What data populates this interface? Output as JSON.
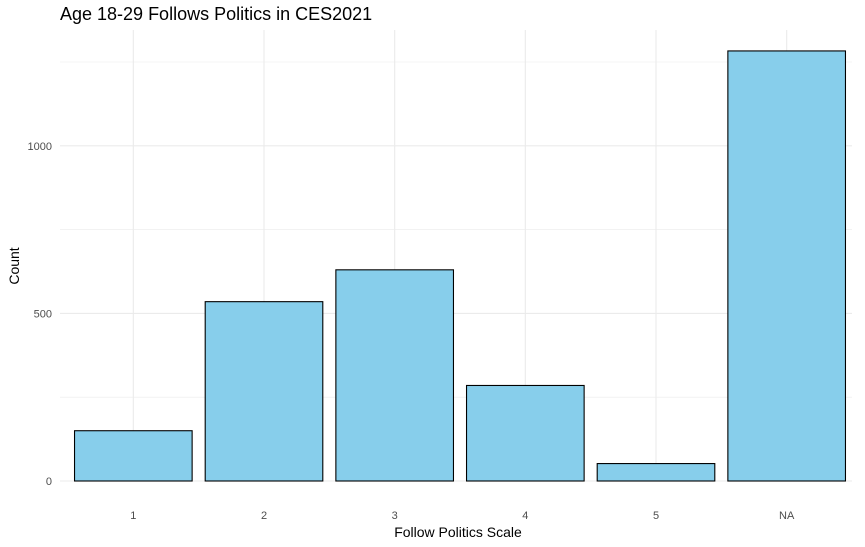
{
  "chart_data": {
    "type": "bar",
    "title": "Age 18-29 Follows Politics in CES2021",
    "xlabel": "Follow Politics Scale",
    "ylabel": "Count",
    "categories": [
      "1",
      "2",
      "3",
      "4",
      "5",
      "NA"
    ],
    "values": [
      150,
      535,
      630,
      285,
      52,
      1283
    ],
    "y_ticks": [
      0,
      500,
      1000
    ],
    "ylim": [
      0,
      1340
    ],
    "grid": true,
    "legend": "none",
    "bar_fill": "#87CEEB",
    "bar_stroke": "#000000",
    "grid_color": "#EBEBEB"
  }
}
